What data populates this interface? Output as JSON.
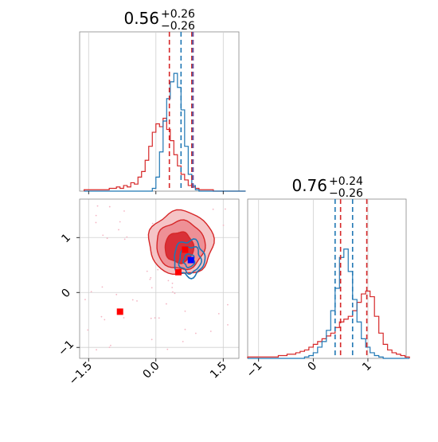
{
  "chart_data": [
    {
      "panel": "x1-marginal",
      "type": "histogram",
      "title": {
        "value": "0.56",
        "plus": "+0.26",
        "minus": "−0.26"
      },
      "xlim": [
        -1.7,
        1.85
      ],
      "ylim": [
        0,
        1
      ],
      "series": [
        {
          "name": "",
          "color": "#d62728",
          "step": 0.08,
          "x_start": -1.6,
          "density": [
            0.01,
            0.01,
            0.01,
            0.01,
            0.01,
            0.01,
            0.01,
            0.02,
            0.02,
            0.03,
            0.02,
            0.04,
            0.03,
            0.06,
            0.05,
            0.1,
            0.14,
            0.22,
            0.32,
            0.42,
            0.48,
            0.46,
            0.52,
            0.44,
            0.36,
            0.26,
            0.18,
            0.12,
            0.08,
            0.04,
            0.03,
            0.02,
            0.01,
            0.01,
            0.01,
            0.01,
            0.0,
            0.0,
            0.0,
            0.0,
            0.0,
            0.0,
            0.0,
            0.0,
            0.0
          ]
        },
        {
          "name": "",
          "color": "#1f77b4",
          "step": 0.08,
          "x_start": -1.6,
          "density": [
            0,
            0,
            0,
            0,
            0,
            0,
            0,
            0,
            0,
            0,
            0,
            0,
            0,
            0,
            0,
            0,
            0,
            0,
            0,
            0.02,
            0.1,
            0.28,
            0.5,
            0.66,
            0.78,
            0.84,
            0.74,
            0.58,
            0.32,
            0.12,
            0.04,
            0.01,
            0,
            0,
            0,
            0,
            0,
            0,
            0,
            0,
            0,
            0,
            0,
            0,
            0
          ]
        }
      ],
      "quantiles": [
        {
          "x": 0.3,
          "color": "#d62728"
        },
        {
          "x": 0.8,
          "color": "#d62728"
        },
        {
          "x": 0.56,
          "color": "#1f77b4"
        },
        {
          "x": 0.82,
          "color": "#1f77b4"
        },
        {
          "x": 0.83,
          "color": "#7a4fa0"
        }
      ]
    },
    {
      "panel": "x2-marginal",
      "type": "histogram",
      "title": {
        "value": "0.76",
        "plus": "+0.24",
        "minus": "−0.26"
      },
      "xlim": [
        -1.2,
        1.7
      ],
      "ylim": [
        0,
        1
      ],
      "xticks": [
        {
          "value": -1,
          "label": "−1"
        },
        {
          "value": 0,
          "label": "0"
        },
        {
          "value": 1,
          "label": "1"
        }
      ],
      "series": [
        {
          "name": "",
          "color": "#d62728",
          "step": 0.08,
          "x_start": -1.2,
          "density": [
            0.01,
            0.01,
            0.01,
            0.01,
            0.01,
            0.01,
            0.01,
            0.02,
            0.02,
            0.03,
            0.03,
            0.04,
            0.05,
            0.06,
            0.08,
            0.1,
            0.12,
            0.14,
            0.16,
            0.18,
            0.22,
            0.26,
            0.28,
            0.3,
            0.34,
            0.4,
            0.46,
            0.48,
            0.44,
            0.3,
            0.18,
            0.1,
            0.06,
            0.04,
            0.03,
            0.02,
            0.01
          ]
        },
        {
          "name": "",
          "color": "#1f77b4",
          "step": 0.08,
          "x_start": -1.2,
          "density": [
            0,
            0,
            0,
            0,
            0,
            0,
            0,
            0,
            0,
            0,
            0,
            0,
            0,
            0.01,
            0.02,
            0.04,
            0.08,
            0.12,
            0.2,
            0.34,
            0.5,
            0.72,
            0.78,
            0.62,
            0.42,
            0.26,
            0.14,
            0.08,
            0.04,
            0.02,
            0.01,
            0,
            0,
            0,
            0,
            0,
            0
          ]
        }
      ],
      "quantiles": [
        {
          "x": 0.4,
          "color": "#1f77b4"
        },
        {
          "x": 0.5,
          "color": "#d62728"
        },
        {
          "x": 0.72,
          "color": "#1f77b4"
        },
        {
          "x": 0.98,
          "color": "#d62728"
        }
      ]
    },
    {
      "panel": "joint",
      "type": "contour",
      "xlim": [
        -1.7,
        1.85
      ],
      "ylim": [
        -1.2,
        1.7
      ],
      "xticks": [
        {
          "value": -1.5,
          "label": "−1.5"
        },
        {
          "value": 0,
          "label": "0.0"
        },
        {
          "value": 1.5,
          "label": "1.5"
        }
      ],
      "yticks": [
        {
          "value": -1,
          "label": "−1"
        },
        {
          "value": 0,
          "label": "0"
        },
        {
          "value": 1,
          "label": "1"
        }
      ],
      "grid": true,
      "red_contours": [
        {
          "level": 0.95,
          "cx": 0.56,
          "cy": 0.9,
          "rx": 0.72,
          "ry": 0.58,
          "fill": "#f5c4c6"
        },
        {
          "level": 0.86,
          "cx": 0.55,
          "cy": 0.86,
          "rx": 0.54,
          "ry": 0.44,
          "fill": "#ee9096"
        },
        {
          "level": 0.5,
          "cx": 0.52,
          "cy": 0.82,
          "rx": 0.32,
          "ry": 0.28,
          "fill": "#d93038"
        }
      ],
      "blue_contours": [
        {
          "level": 0.95,
          "cx": 0.74,
          "cy": 0.62,
          "rx": 0.34,
          "ry": 0.33
        },
        {
          "level": 0.86,
          "cx": 0.76,
          "cy": 0.6,
          "rx": 0.24,
          "ry": 0.24
        },
        {
          "level": 0.5,
          "cx": 0.74,
          "cy": 0.58,
          "rx": 0.12,
          "ry": 0.12
        }
      ],
      "markers": [
        {
          "x": -0.8,
          "y": -0.35,
          "color": "#ff0000"
        },
        {
          "x": 0.5,
          "y": 0.37,
          "color": "#ff0000"
        },
        {
          "x": 0.65,
          "y": 0.78,
          "color": "#ff0000"
        },
        {
          "x": 0.78,
          "y": 0.59,
          "color": "#0000ff"
        }
      ],
      "scatter_seed": 7,
      "scatter_count": 60,
      "scatter_color": "#f4b6c4"
    }
  ]
}
